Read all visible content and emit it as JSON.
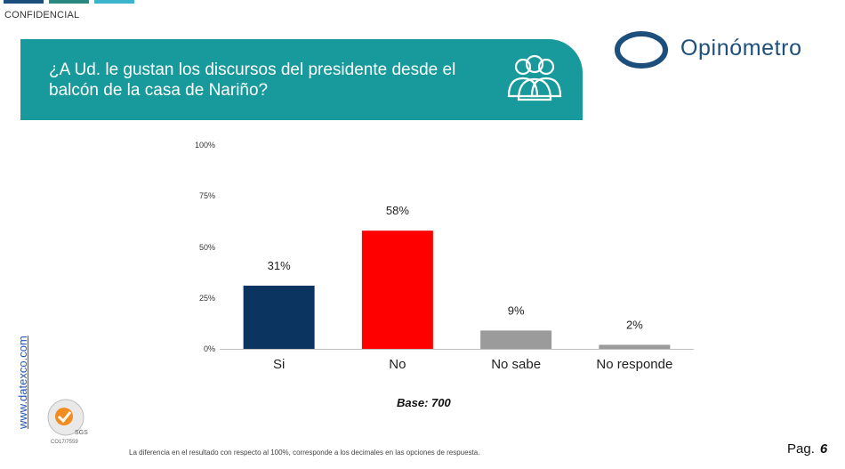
{
  "header": {
    "confidential": "CONFIDENCIAL",
    "question": "¿A Ud. le gustan los discursos del presidente desde el balcón de la casa de Nariño?",
    "brand": "Opinómetro"
  },
  "colors": {
    "banner": "#18999b",
    "brand": "#1d4f7d",
    "topbar": [
      "#1d4f7d",
      "#2b8a80",
      "#3bb5cc"
    ],
    "link": "#1f56b5"
  },
  "icons": {
    "question": "people-group-icon",
    "certification": "sgs-seal-icon"
  },
  "chart_data": {
    "type": "bar",
    "categories": [
      "Si",
      "No",
      "No sabe",
      "No responde"
    ],
    "values": [
      31,
      58,
      9,
      2
    ],
    "data_labels": [
      "31%",
      "58%",
      "9%",
      "2%"
    ],
    "colors": [
      "#0b3560",
      "#ff0000",
      "#9b9b9b",
      "#9b9b9b"
    ],
    "y_ticks": [
      "0%",
      "25%",
      "50%",
      "75%",
      "100%"
    ],
    "ylim": [
      0,
      100
    ],
    "title": "",
    "xlabel": "",
    "ylabel": "",
    "grid": false,
    "base": "Base: 700"
  },
  "footer": {
    "website": "www.datexco.com",
    "certificate": "CO17/7559",
    "seal_label": "SGS",
    "note": "La diferencia en el resultado con respecto al 100%, corresponde a los decimales en las opciones de respuesta.",
    "page_label": "Pag.",
    "page_number": "6"
  }
}
